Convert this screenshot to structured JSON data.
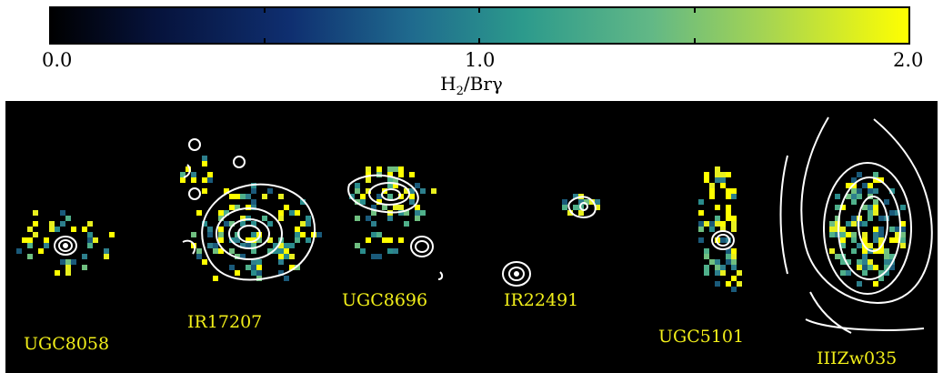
{
  "colorbar": {
    "ticks": [
      "0.0",
      "1.0",
      "2.0"
    ],
    "label_main": "H",
    "label_sub": "2",
    "label_rest": "/Brγ",
    "colormap": [
      "#000000",
      "#0a1a4f",
      "#1a4f8a",
      "#2a8c8c",
      "#52b38a",
      "#8fcf5a",
      "#d9ea2a",
      "#ffff00"
    ],
    "range": [
      0.0,
      2.0
    ]
  },
  "galaxies": [
    {
      "name": "UGC8058"
    },
    {
      "name": "IR17207"
    },
    {
      "name": "UGC8696"
    },
    {
      "name": "IR22491"
    },
    {
      "name": "UGC5101"
    },
    {
      "name": "IIIZw035"
    }
  ]
}
